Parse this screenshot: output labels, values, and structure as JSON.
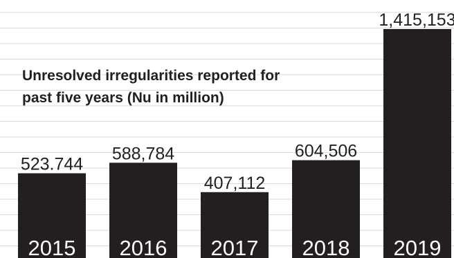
{
  "chart_data": {
    "type": "bar",
    "title_lines": [
      "Unresolved irregularities reported for",
      "past five years (Nu in million)"
    ],
    "categories": [
      "2015",
      "2016",
      "2017",
      "2018",
      "2019"
    ],
    "values": [
      523744,
      588784,
      407112,
      604506,
      1415153
    ],
    "value_labels": [
      "523.744",
      "588,784",
      "407,112",
      "604,506",
      "1,415,153"
    ],
    "xlabel": "",
    "ylabel": "",
    "ylim": [
      0,
      1415153
    ],
    "grid": true,
    "legend": "none",
    "colors": {
      "bar": "#231f20",
      "grid": "#d9d9d9",
      "category_text": "#ffffff"
    }
  }
}
